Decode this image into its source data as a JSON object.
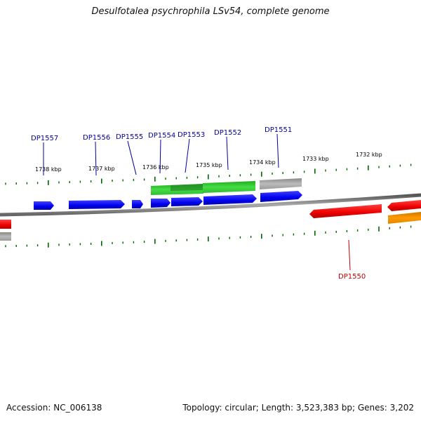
{
  "title": "Desulfotalea psychrophila LSv54, complete genome",
  "footer": {
    "accession": "Accession: NC_006138",
    "topology": "Topology: circular; Length: 3,523,383 bp; Genes: 3,202"
  },
  "kbp_labels": [
    "1738 kbp",
    "1737 kbp",
    "1736 kbp",
    "1735 kbp",
    "1734 kbp",
    "1733 kbp",
    "1732 kbp"
  ],
  "gene_labels": {
    "dp1557": "DP1557",
    "dp1556": "DP1556",
    "dp1555": "DP1555",
    "dp1554": "DP1554",
    "dp1553": "DP1553",
    "dp1552": "DP1552",
    "dp1551": "DP1551",
    "dp1550": "DP1550"
  },
  "colors": {
    "forward_strand": "#0000ff",
    "reverse_strand": "#ff0000",
    "rna": "#33cc33",
    "pseudo": "#aaaaaa",
    "other": "#ff9900",
    "backbone": "#7a7a7a",
    "ticks": "#006600"
  }
}
